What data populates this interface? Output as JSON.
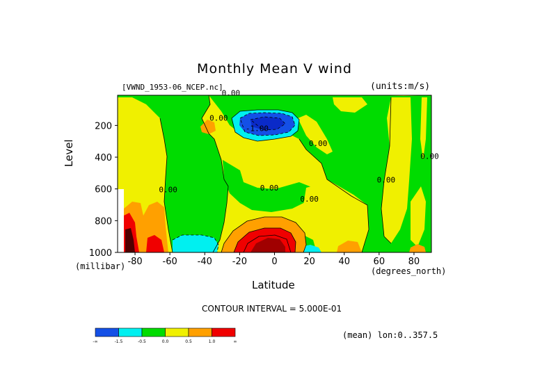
{
  "title": "Monthly Mean V wind",
  "dataset_label": "[VWND_1953-06_NCEP.nc]",
  "units_label": "(units:m/s)",
  "xlabel": "Latitude",
  "ylabel": "Level",
  "x_units": "(degrees_north)",
  "y_units": "(millibar)",
  "contour_info": "CONTOUR INTERVAL = 5.000E-01",
  "mean_info": "(mean) lon:0..357.5",
  "chart_data": {
    "type": "heatmap",
    "x_ticks": [
      "-80",
      "-60",
      "-40",
      "-20",
      "0",
      "20",
      "40",
      "60",
      "80"
    ],
    "x_tick_values": [
      -80,
      -60,
      -40,
      -20,
      0,
      20,
      40,
      60,
      80
    ],
    "y_ticks": [
      "200",
      "400",
      "600",
      "800",
      "1000"
    ],
    "y_tick_values": [
      200,
      400,
      600,
      800,
      1000
    ],
    "xlim": [
      -90,
      90
    ],
    "ylim": [
      10,
      1000
    ],
    "contour_labels": [
      {
        "text": "0.00",
        "lat": -25,
        "lev": 12
      },
      {
        "text": "0.00",
        "lat": -32,
        "lev": 170
      },
      {
        "text": "-1.00",
        "lat": -10,
        "lev": 235
      },
      {
        "text": "0.00",
        "lat": 25,
        "lev": 330
      },
      {
        "text": "0.00",
        "lat": 89,
        "lev": 410
      },
      {
        "text": "0.00",
        "lat": -61,
        "lev": 620
      },
      {
        "text": "0.00",
        "lat": -3,
        "lev": 610
      },
      {
        "text": "0.00",
        "lat": 20,
        "lev": 680
      },
      {
        "text": "0.00",
        "lat": 64,
        "lev": 560
      }
    ],
    "colorbar": {
      "colors": [
        "#1450e6",
        "#00f0f0",
        "#00dc00",
        "#f0f000",
        "#ffa000",
        "#f00000"
      ],
      "labels": [
        "-∞",
        "-1.5",
        "-0.5",
        "0.0",
        "0.5",
        "1.0",
        "∞"
      ]
    },
    "level_colors": {
      "deep_blue": "#0a2ac8",
      "blue": "#1450e6",
      "cyan": "#00f0f0",
      "green": "#00dc00",
      "yellow": "#f0f000",
      "orange": "#ffa000",
      "red": "#f00000",
      "dark_red": "#a00000",
      "dark_maroon": "#500000"
    }
  }
}
